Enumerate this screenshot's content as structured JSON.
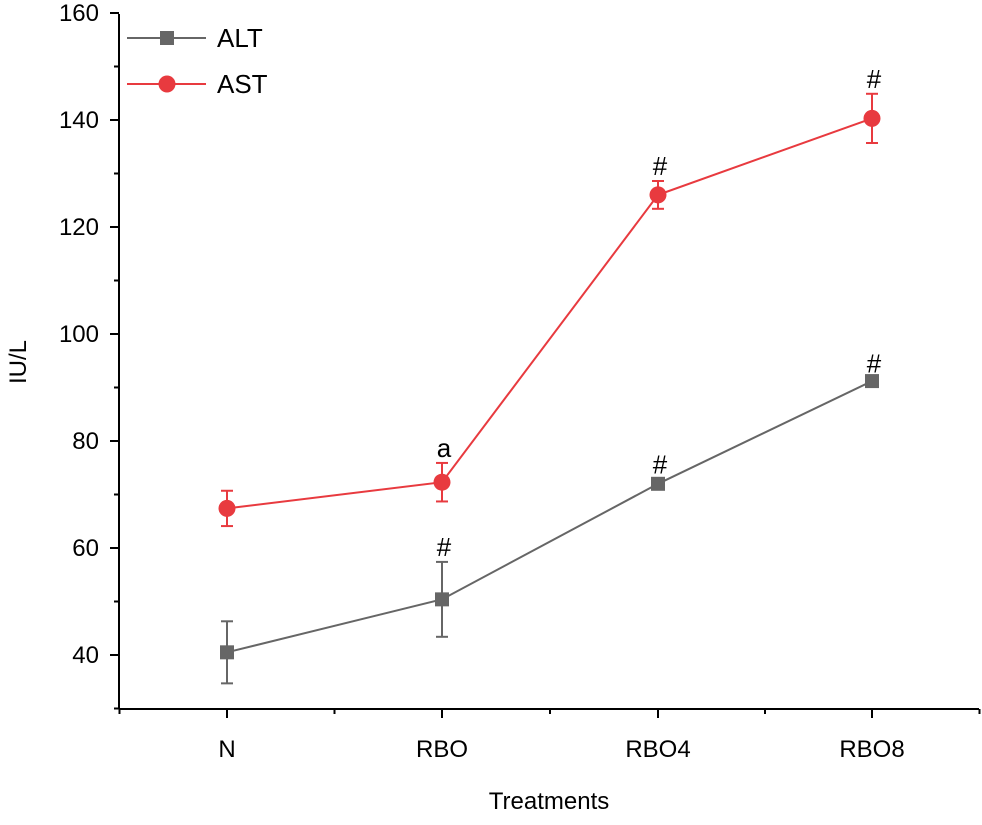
{
  "chart_data": {
    "type": "line",
    "xlabel": "Treatments",
    "ylabel": "IU/L",
    "categories": [
      "N",
      "RBO",
      "RBO4",
      "RBO8"
    ],
    "ylim": [
      30,
      160
    ],
    "yticks": [
      40,
      60,
      80,
      100,
      120,
      140,
      160
    ],
    "grid": false,
    "legend_position": "top-left",
    "series": [
      {
        "name": "ALT",
        "marker": "square",
        "color": "#666666",
        "values": [
          40.5,
          50.4,
          72.0,
          91.2
        ],
        "error": [
          5.8,
          7.0,
          0.8,
          0.5
        ],
        "annotations": [
          "",
          "#",
          "#",
          "#"
        ]
      },
      {
        "name": "AST",
        "marker": "circle",
        "color": "#e83a3f",
        "values": [
          67.4,
          72.3,
          126.0,
          140.3
        ],
        "error": [
          3.3,
          3.6,
          2.6,
          4.6
        ],
        "annotations": [
          "",
          "a",
          "#",
          "#"
        ]
      }
    ]
  }
}
